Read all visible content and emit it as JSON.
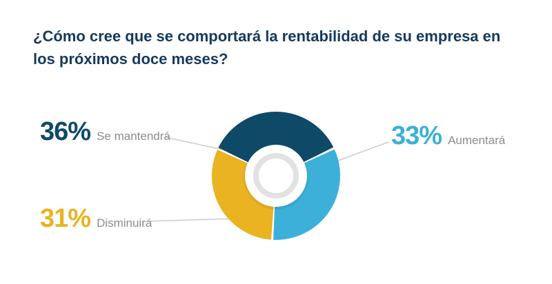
{
  "chart_data": {
    "type": "pie",
    "subtype": "donut",
    "title": "¿Cómo cree que se comportará la rentabilidad de su empresa en los próximos doce meses?",
    "start_angle_deg": -65,
    "legend_position": "outside-callouts",
    "donut_hole_radius_ratio": 0.47,
    "slices": [
      {
        "label": "Se mantendrá",
        "pct_label": "36%",
        "value": 36,
        "color": "#0e4a68"
      },
      {
        "label": "Aumentará",
        "pct_label": "33%",
        "value": 33,
        "color": "#3cb0d8"
      },
      {
        "label": "Disminuirá",
        "pct_label": "31%",
        "value": 31,
        "color": "#e9b322"
      }
    ]
  },
  "styles": {
    "title_color": "#15395e",
    "sublabel_color": "#8b8b8b",
    "leader_line_color": "#cccccc",
    "hole_ring_color": "#e2e2e2"
  }
}
